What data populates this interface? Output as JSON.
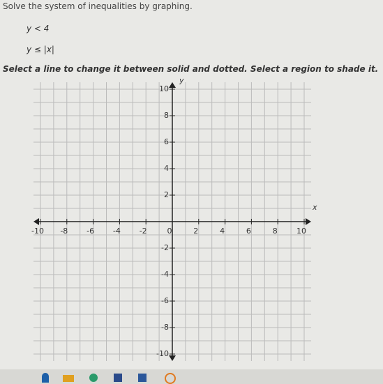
{
  "header": {
    "title": "Solve the system of inequalities by graphing."
  },
  "inequalities": [
    "y < 4",
    "y ≤ |x|"
  ],
  "instruction": "Select a line to change it between solid and dotted. Select a region to shade it.",
  "graph": {
    "x_label": "x",
    "y_label": "y",
    "xlim": [
      -10,
      10
    ],
    "ylim": [
      -10,
      10
    ],
    "xticks": [
      -10,
      -8,
      -6,
      -4,
      -2,
      0,
      2,
      4,
      6,
      8,
      10
    ],
    "yticks": [
      -10,
      -8,
      -6,
      -4,
      -2,
      2,
      4,
      6,
      8,
      10
    ]
  }
}
